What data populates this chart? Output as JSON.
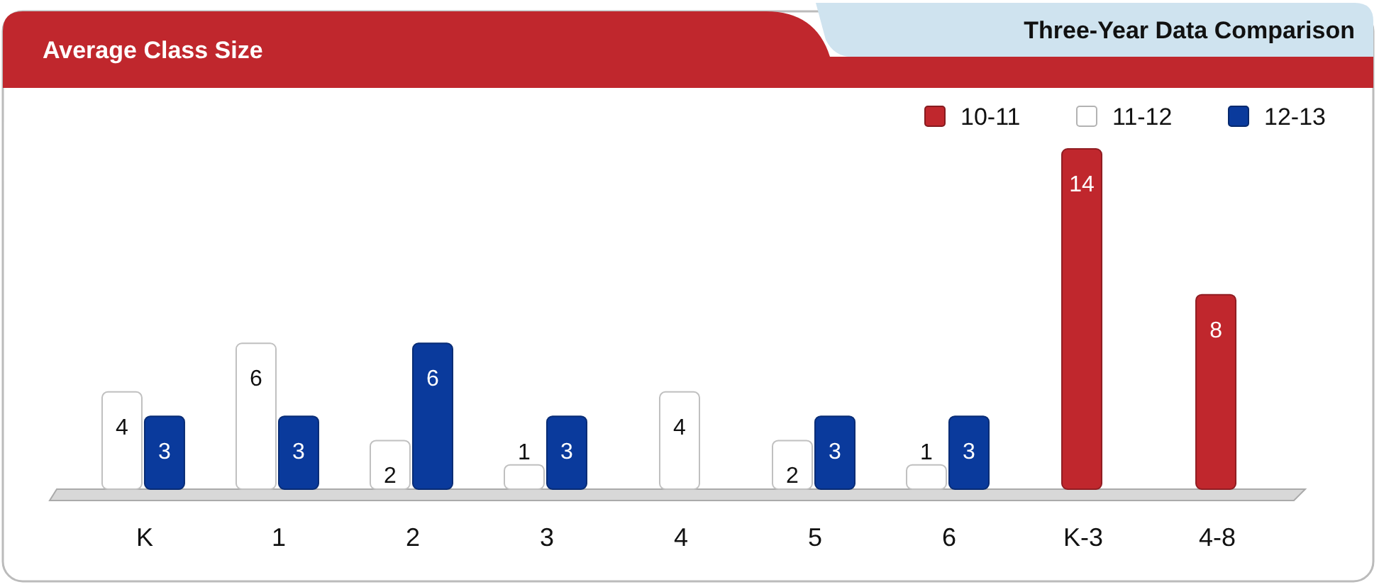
{
  "chart_data": {
    "type": "bar",
    "title": "Average Class Size",
    "subtitle": "Three-Year Data Comparison",
    "categories": [
      "K",
      "1",
      "2",
      "3",
      "4",
      "5",
      "6",
      "K-3",
      "4-8"
    ],
    "series": [
      {
        "name": "10-11",
        "color": "#c0272d",
        "values": [
          null,
          null,
          null,
          null,
          null,
          null,
          null,
          14,
          8
        ]
      },
      {
        "name": "11-12",
        "color": "#ffffff",
        "values": [
          4,
          6,
          2,
          1,
          4,
          2,
          1,
          null,
          null
        ]
      },
      {
        "name": "12-13",
        "color": "#0a3a9c",
        "values": [
          3,
          3,
          6,
          3,
          null,
          3,
          3,
          null,
          null
        ]
      }
    ],
    "data_labels": true,
    "legend": "top right"
  }
}
